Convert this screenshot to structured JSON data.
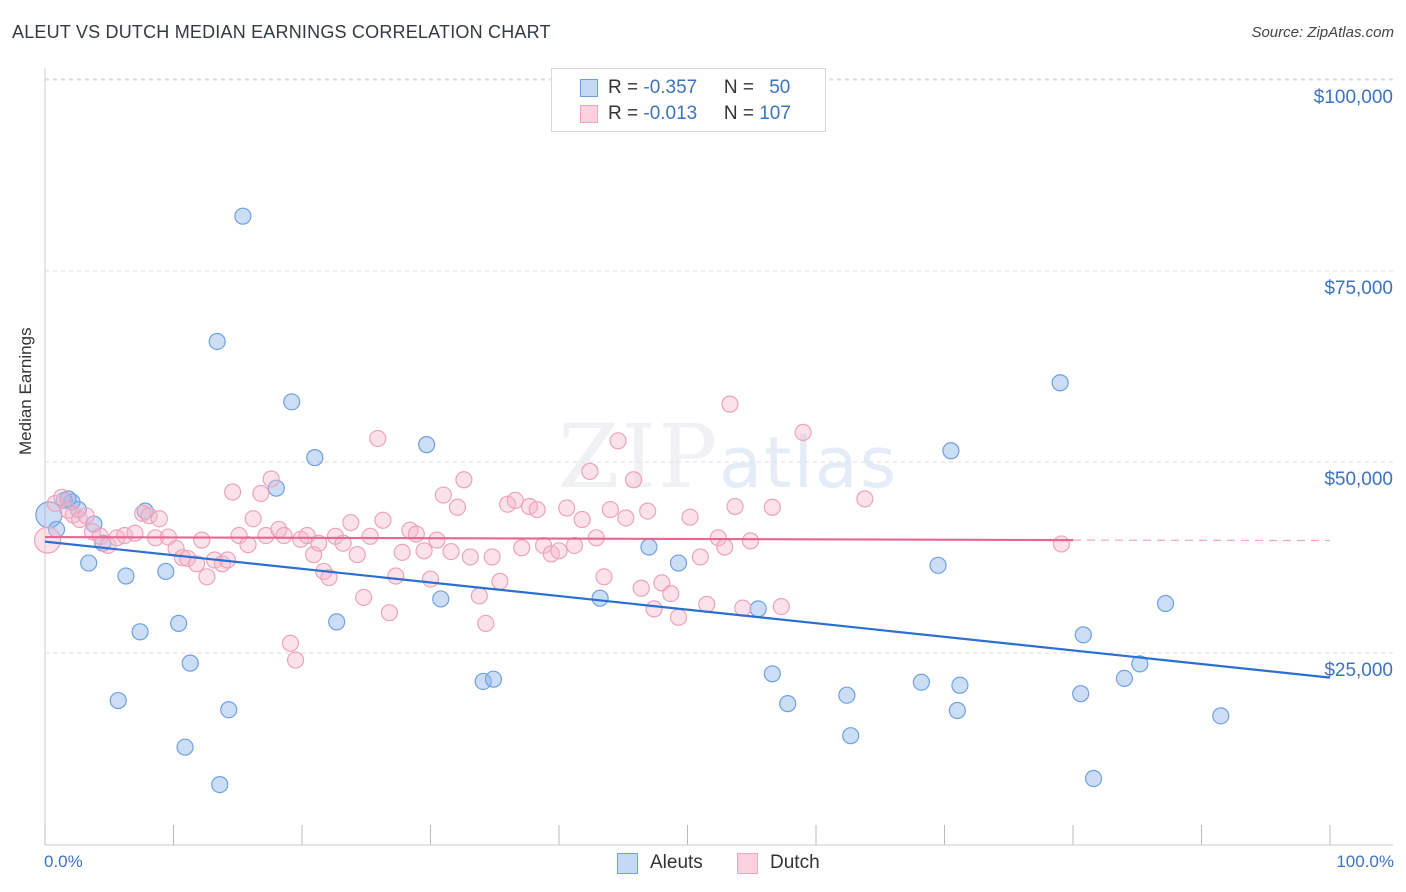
{
  "title": "ALEUT VS DUTCH MEDIAN EARNINGS CORRELATION CHART",
  "source": "Source: ZipAtlas.com",
  "watermark": {
    "zip": "ZIP",
    "atlas": "atlas"
  },
  "legend_top": {
    "rows": [
      {
        "r_label": "R = ",
        "r_value": "-0.357",
        "n_label": "N = ",
        "n_value": "50",
        "color": "#6fa1e0"
      },
      {
        "r_label": "R = ",
        "r_value": "-0.013",
        "n_label": "N = ",
        "n_value": "107",
        "color": "#f2a3bc"
      }
    ]
  },
  "legend_bottom": [
    {
      "label": "Aleuts",
      "color": "#6fa1e0"
    },
    {
      "label": "Dutch",
      "color": "#f2a3bc"
    }
  ],
  "chart_data": {
    "type": "scatter",
    "title": "ALEUT VS DUTCH MEDIAN EARNINGS CORRELATION CHART",
    "xlabel": "",
    "ylabel": "Median Earnings",
    "xlim": [
      0,
      100
    ],
    "ylim": [
      0,
      105000
    ],
    "x_tick_labels": [
      "0.0%",
      "100.0%"
    ],
    "y_ticks": [
      25000,
      50000,
      75000,
      100000
    ],
    "y_tick_labels": [
      "$25,000",
      "$50,000",
      "$75,000",
      "$100,000"
    ],
    "grid": true,
    "series": [
      {
        "name": "Aleuts",
        "color": "#6fa1e0",
        "trend": {
          "x": [
            0,
            100
          ],
          "y": [
            41800,
            24000
          ]
        },
        "points": [
          [
            0.3,
            45300
          ],
          [
            0.9,
            43400
          ],
          [
            1.5,
            47200
          ],
          [
            2.1,
            47000
          ],
          [
            2.6,
            46000
          ],
          [
            3.4,
            39000
          ],
          [
            3.8,
            44100
          ],
          [
            4.5,
            41600
          ],
          [
            5.7,
            21000
          ],
          [
            6.3,
            37300
          ],
          [
            7.4,
            30000
          ],
          [
            7.8,
            45800
          ],
          [
            9.4,
            37900
          ],
          [
            10.4,
            31100
          ],
          [
            10.9,
            14900
          ],
          [
            11.3,
            25900
          ],
          [
            13.4,
            68000
          ],
          [
            13.6,
            10000
          ],
          [
            14.3,
            19800
          ],
          [
            15.4,
            84400
          ],
          [
            18.0,
            48800
          ],
          [
            19.2,
            60100
          ],
          [
            21.0,
            52800
          ],
          [
            22.7,
            31300
          ],
          [
            29.7,
            54500
          ],
          [
            30.8,
            34300
          ],
          [
            34.1,
            23500
          ],
          [
            34.9,
            23800
          ],
          [
            43.2,
            34400
          ],
          [
            47.0,
            41100
          ],
          [
            49.3,
            39000
          ],
          [
            55.5,
            33000
          ],
          [
            56.6,
            24500
          ],
          [
            57.8,
            20600
          ],
          [
            62.4,
            21700
          ],
          [
            62.7,
            16400
          ],
          [
            68.2,
            23400
          ],
          [
            69.5,
            38700
          ],
          [
            70.5,
            53700
          ],
          [
            71.0,
            19700
          ],
          [
            71.2,
            23000
          ],
          [
            79.0,
            62600
          ],
          [
            80.6,
            21900
          ],
          [
            80.8,
            29600
          ],
          [
            81.6,
            10800
          ],
          [
            84.0,
            23900
          ],
          [
            85.2,
            25800
          ],
          [
            87.2,
            33700
          ],
          [
            91.5,
            19000
          ],
          [
            1.8,
            47400
          ]
        ]
      },
      {
        "name": "Dutch",
        "color": "#f2a3bc",
        "trend": {
          "x": [
            0,
            80
          ],
          "y": [
            42400,
            42000
          ]
        },
        "points": [
          [
            0.2,
            42000
          ],
          [
            0.8,
            46800
          ],
          [
            1.3,
            47600
          ],
          [
            1.8,
            45900
          ],
          [
            2.2,
            45300
          ],
          [
            2.7,
            44700
          ],
          [
            3.2,
            45200
          ],
          [
            3.7,
            43100
          ],
          [
            4.3,
            42500
          ],
          [
            4.9,
            41300
          ],
          [
            5.6,
            42300
          ],
          [
            6.2,
            42600
          ],
          [
            7.0,
            42900
          ],
          [
            7.6,
            45500
          ],
          [
            8.1,
            45200
          ],
          [
            8.6,
            42300
          ],
          [
            8.9,
            44800
          ],
          [
            9.6,
            42400
          ],
          [
            10.2,
            40900
          ],
          [
            10.7,
            39700
          ],
          [
            11.1,
            39600
          ],
          [
            11.8,
            38900
          ],
          [
            12.2,
            42000
          ],
          [
            12.6,
            37200
          ],
          [
            13.2,
            39400
          ],
          [
            13.8,
            38900
          ],
          [
            14.2,
            39400
          ],
          [
            14.6,
            48300
          ],
          [
            15.1,
            42600
          ],
          [
            15.8,
            41400
          ],
          [
            16.2,
            44800
          ],
          [
            16.8,
            48100
          ],
          [
            17.2,
            42600
          ],
          [
            17.6,
            50000
          ],
          [
            18.2,
            43400
          ],
          [
            18.6,
            42600
          ],
          [
            19.1,
            28500
          ],
          [
            19.5,
            26300
          ],
          [
            19.9,
            42100
          ],
          [
            20.4,
            42600
          ],
          [
            20.9,
            40100
          ],
          [
            21.3,
            41600
          ],
          [
            21.7,
            37900
          ],
          [
            22.1,
            37100
          ],
          [
            22.6,
            42500
          ],
          [
            23.2,
            41600
          ],
          [
            23.8,
            44300
          ],
          [
            24.3,
            40100
          ],
          [
            24.8,
            34500
          ],
          [
            25.3,
            42500
          ],
          [
            25.9,
            55300
          ],
          [
            26.3,
            44600
          ],
          [
            26.8,
            32500
          ],
          [
            27.3,
            37300
          ],
          [
            27.8,
            40400
          ],
          [
            28.4,
            43300
          ],
          [
            28.9,
            42800
          ],
          [
            29.5,
            40600
          ],
          [
            30.0,
            36900
          ],
          [
            30.5,
            42000
          ],
          [
            31.0,
            47900
          ],
          [
            31.6,
            40500
          ],
          [
            32.1,
            46300
          ],
          [
            32.6,
            49900
          ],
          [
            33.1,
            39800
          ],
          [
            33.8,
            34700
          ],
          [
            34.3,
            31100
          ],
          [
            34.8,
            39800
          ],
          [
            35.4,
            36600
          ],
          [
            36.0,
            46700
          ],
          [
            36.6,
            47200
          ],
          [
            37.1,
            41000
          ],
          [
            37.7,
            46400
          ],
          [
            38.3,
            46000
          ],
          [
            38.8,
            41300
          ],
          [
            39.4,
            40200
          ],
          [
            40.0,
            40600
          ],
          [
            40.6,
            46200
          ],
          [
            41.2,
            41300
          ],
          [
            41.8,
            44700
          ],
          [
            42.4,
            51000
          ],
          [
            42.9,
            42300
          ],
          [
            43.5,
            37200
          ],
          [
            44.0,
            46000
          ],
          [
            44.6,
            55000
          ],
          [
            45.2,
            44900
          ],
          [
            45.8,
            49900
          ],
          [
            46.4,
            35700
          ],
          [
            46.9,
            45800
          ],
          [
            47.4,
            33000
          ],
          [
            48.0,
            36400
          ],
          [
            48.7,
            35000
          ],
          [
            49.3,
            31900
          ],
          [
            50.2,
            45000
          ],
          [
            51.0,
            39800
          ],
          [
            51.5,
            33600
          ],
          [
            52.4,
            42300
          ],
          [
            52.9,
            41100
          ],
          [
            53.3,
            59800
          ],
          [
            53.7,
            46400
          ],
          [
            54.3,
            33100
          ],
          [
            54.9,
            41900
          ],
          [
            56.6,
            46300
          ],
          [
            57.3,
            33300
          ],
          [
            59.0,
            56100
          ],
          [
            63.8,
            47400
          ],
          [
            79.1,
            41500
          ]
        ]
      }
    ]
  }
}
